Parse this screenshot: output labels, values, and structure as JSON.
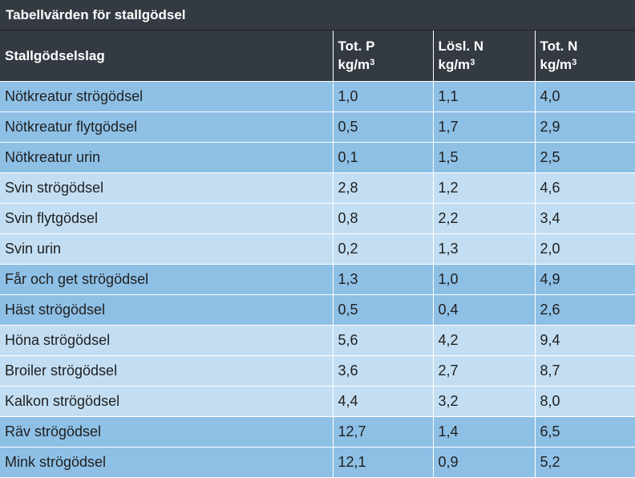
{
  "title": "Tabellvärden för stallgödsel",
  "header": {
    "col1": "Stallgödselslag",
    "col2_line1": "Tot. P",
    "col3_line1": "Lösl. N",
    "col4_line1": "Tot. N",
    "unit": "kg/m",
    "unit_sup": "3"
  },
  "rows": [
    {
      "name": "Nötkreatur strögödsel",
      "p": "1,0",
      "n_sol": "1,1",
      "n_tot": "4,0",
      "shade": "dark"
    },
    {
      "name": "Nötkreatur flytgödsel",
      "p": "0,5",
      "n_sol": "1,7",
      "n_tot": "2,9",
      "shade": "dark"
    },
    {
      "name": "Nötkreatur urin",
      "p": "0,1",
      "n_sol": "1,5",
      "n_tot": "2,5",
      "shade": "dark"
    },
    {
      "name": "Svin strögödsel",
      "p": "2,8",
      "n_sol": "1,2",
      "n_tot": "4,6",
      "shade": "light"
    },
    {
      "name": "Svin flytgödsel",
      "p": "0,8",
      "n_sol": "2,2",
      "n_tot": "3,4",
      "shade": "light"
    },
    {
      "name": "Svin urin",
      "p": "0,2",
      "n_sol": "1,3",
      "n_tot": "2,0",
      "shade": "light"
    },
    {
      "name": "Får och get strögödsel",
      "p": "1,3",
      "n_sol": "1,0",
      "n_tot": "4,9",
      "shade": "dark"
    },
    {
      "name": "Häst strögödsel",
      "p": "0,5",
      "n_sol": "0,4",
      "n_tot": "2,6",
      "shade": "dark"
    },
    {
      "name": "Höna strögödsel",
      "p": "5,6",
      "n_sol": "4,2",
      "n_tot": "9,4",
      "shade": "light"
    },
    {
      "name": "Broiler strögödsel",
      "p": "3,6",
      "n_sol": "2,7",
      "n_tot": "8,7",
      "shade": "light"
    },
    {
      "name": "Kalkon strögödsel",
      "p": "4,4",
      "n_sol": "3,2",
      "n_tot": "8,0",
      "shade": "light"
    },
    {
      "name": "Räv strögödsel",
      "p": "12,7",
      "n_sol": "1,4",
      "n_tot": "6,5",
      "shade": "dark"
    },
    {
      "name": "Mink strögödsel",
      "p": "12,1",
      "n_sol": "0,9",
      "n_tot": "5,2",
      "shade": "dark"
    }
  ],
  "colors": {
    "header_bg": "#333a42",
    "row_dark": "#8ec0e6",
    "row_light": "#c3def2"
  }
}
